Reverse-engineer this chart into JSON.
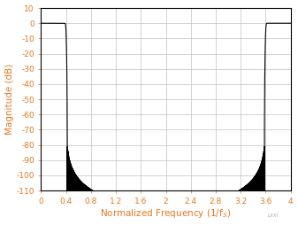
{
  "title": "",
  "xlabel": "Normalized Frequency (1/f$_S$)",
  "ylabel": "Magnitude (dB)",
  "xlim": [
    0,
    4
  ],
  "ylim": [
    -110,
    10
  ],
  "xticks": [
    0,
    0.4,
    0.8,
    1.2,
    1.6,
    2.0,
    2.4,
    2.8,
    3.2,
    3.6,
    4.0
  ],
  "xtick_labels": [
    "0",
    "0.4",
    "0.8",
    "1.2",
    "1.6",
    "2",
    "2.4",
    "2.8",
    "3.2",
    "3.6",
    "4"
  ],
  "yticks": [
    10,
    0,
    -10,
    -20,
    -30,
    -40,
    -50,
    -60,
    -70,
    -80,
    -90,
    -100,
    -110
  ],
  "line_color": "#000000",
  "grid_color": "#c0c0c0",
  "axis_label_color": "#e87722",
  "tick_label_color": "#e87722",
  "background_color": "#ffffff",
  "plot_background": "#ffffff",
  "watermark": "LXXI"
}
